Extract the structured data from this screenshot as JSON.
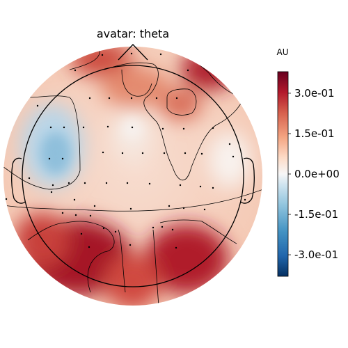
{
  "chart_data": {
    "type": "heatmap",
    "subtype": "eeg-topomap",
    "title": "avatar: theta",
    "colorbar": {
      "unit": "AU",
      "range": [
        -0.38,
        0.38
      ],
      "ticks": [
        {
          "value": 0.3,
          "label": "3.0e-01"
        },
        {
          "value": 0.15,
          "label": "1.5e-01"
        },
        {
          "value": 0.0,
          "label": "0.0e+00"
        },
        {
          "value": -0.15,
          "label": "-1.5e-01"
        },
        {
          "value": -0.3,
          "label": "-3.0e-01"
        }
      ],
      "colormap": "RdBu_r"
    },
    "regions": [
      {
        "name": "occipital-left",
        "level": 0.36
      },
      {
        "name": "occipital-center",
        "level": 0.24
      },
      {
        "name": "occipital-right",
        "level": 0.34
      },
      {
        "name": "frontal-right-edge",
        "level": 0.3
      },
      {
        "name": "frontal-midline",
        "level": 0.26
      },
      {
        "name": "right-frontal-island",
        "level": 0.22
      },
      {
        "name": "central-midline",
        "level": 0.1
      },
      {
        "name": "right-temporal",
        "level": 0.02
      },
      {
        "name": "left-temporal",
        "level": -0.12
      }
    ],
    "grid": false,
    "legend": "colorbar-right"
  }
}
